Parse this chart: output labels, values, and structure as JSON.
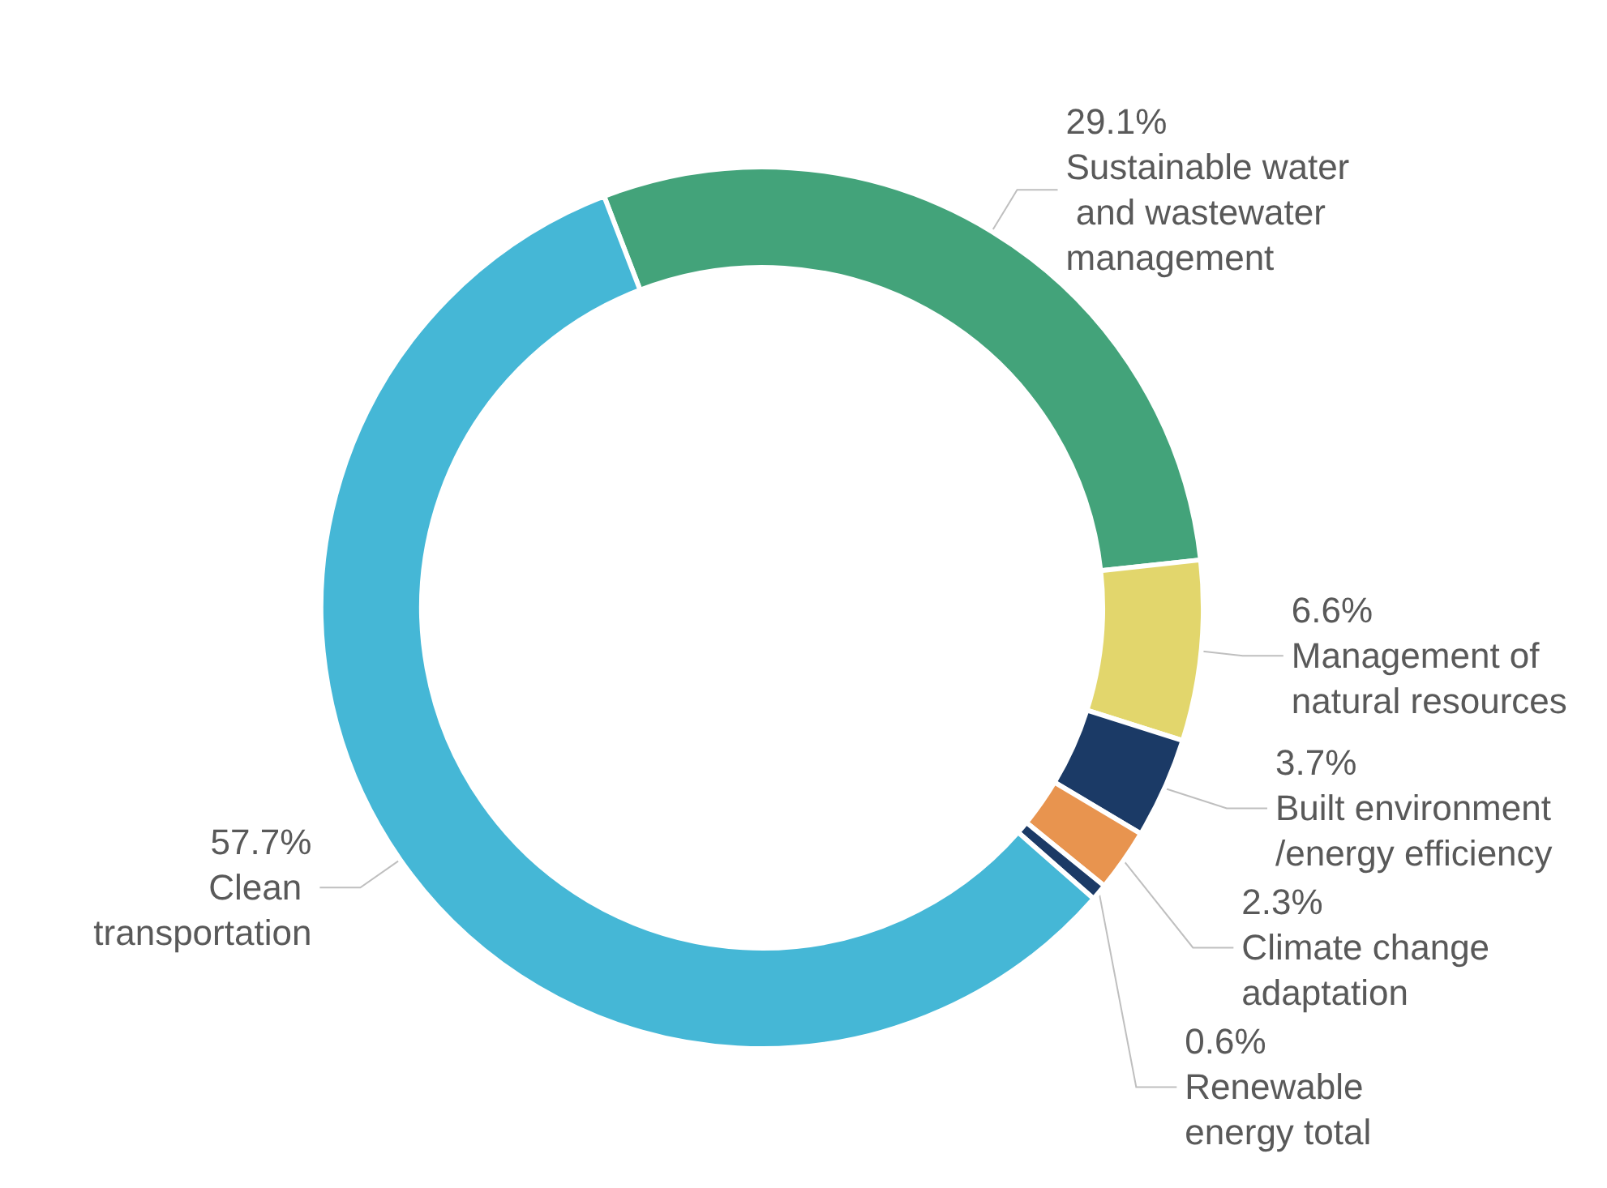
{
  "chart_data": {
    "type": "donut",
    "categories": [
      "Sustainable water and wastewater management",
      "Management of natural resources",
      "Built environment/energy efficiency",
      "Climate change adaptation",
      "Renewable energy total",
      "Clean transportation"
    ],
    "values": [
      29.1,
      6.6,
      3.7,
      2.3,
      0.6,
      57.7
    ],
    "value_labels": [
      "29.1%",
      "6.6%",
      "3.7%",
      "2.3%",
      "0.6%",
      "57.7%"
    ],
    "colors": [
      "#43a37a",
      "#e2d66c",
      "#1b3a66",
      "#e8944f",
      "#1b3a66",
      "#45b7d6"
    ],
    "legend": false
  }
}
